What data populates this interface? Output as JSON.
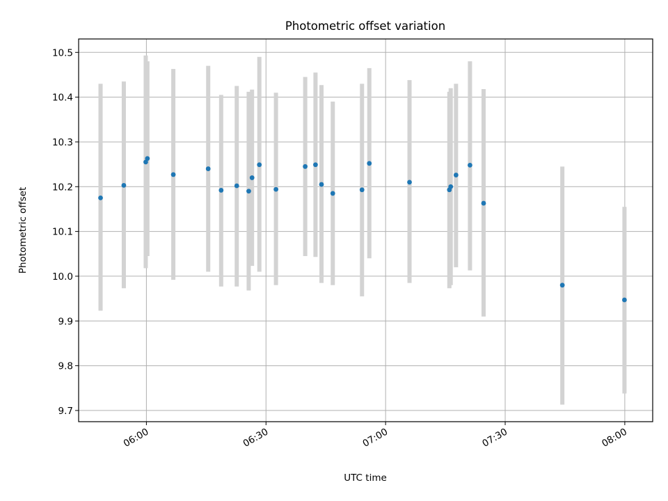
{
  "chart_data": {
    "type": "scatter",
    "title": "Photometric offset variation",
    "xlabel": "UTC time",
    "ylabel": "Photometric offset",
    "grid": true,
    "x_axis": {
      "scale": "time",
      "range": [
        "05:43",
        "08:07"
      ],
      "ticks": [
        "06:00",
        "06:30",
        "07:00",
        "07:30",
        "08:00"
      ]
    },
    "y_axis": {
      "range": [
        9.675,
        10.53
      ],
      "ticks": [
        9.7,
        9.8,
        9.9,
        10.0,
        10.1,
        10.2,
        10.3,
        10.4,
        10.5
      ],
      "tick_labels": [
        "9.7",
        "9.8",
        "9.9",
        "10.0",
        "10.1",
        "10.2",
        "10.3",
        "10.4",
        "10.5"
      ]
    },
    "colors": {
      "points": "#1f77b4",
      "errorbars": "#d3d3d3"
    },
    "series": [
      {
        "points": [
          {
            "x": "05:48:30",
            "y": 10.175,
            "lo": 9.923,
            "hi": 10.43
          },
          {
            "x": "05:54:20",
            "y": 10.203,
            "lo": 9.973,
            "hi": 10.435
          },
          {
            "x": "05:59:50",
            "y": 10.255,
            "lo": 10.018,
            "hi": 10.493
          },
          {
            "x": "06:00:15",
            "y": 10.263,
            "lo": 10.045,
            "hi": 10.48
          },
          {
            "x": "06:06:45",
            "y": 10.227,
            "lo": 9.992,
            "hi": 10.463
          },
          {
            "x": "06:15:30",
            "y": 10.24,
            "lo": 10.01,
            "hi": 10.47
          },
          {
            "x": "06:18:45",
            "y": 10.192,
            "lo": 9.977,
            "hi": 10.405
          },
          {
            "x": "06:22:40",
            "y": 10.202,
            "lo": 9.977,
            "hi": 10.425
          },
          {
            "x": "06:25:40",
            "y": 10.19,
            "lo": 9.968,
            "hi": 10.412
          },
          {
            "x": "06:26:30",
            "y": 10.22,
            "lo": 10.023,
            "hi": 10.417
          },
          {
            "x": "06:28:20",
            "y": 10.249,
            "lo": 10.01,
            "hi": 10.49
          },
          {
            "x": "06:32:30",
            "y": 10.194,
            "lo": 9.98,
            "hi": 10.41
          },
          {
            "x": "06:39:50",
            "y": 10.245,
            "lo": 10.045,
            "hi": 10.445
          },
          {
            "x": "06:42:25",
            "y": 10.249,
            "lo": 10.043,
            "hi": 10.455
          },
          {
            "x": "06:43:55",
            "y": 10.205,
            "lo": 9.985,
            "hi": 10.427
          },
          {
            "x": "06:46:45",
            "y": 10.185,
            "lo": 9.98,
            "hi": 10.39
          },
          {
            "x": "06:54:05",
            "y": 10.193,
            "lo": 9.955,
            "hi": 10.43
          },
          {
            "x": "06:55:55",
            "y": 10.252,
            "lo": 10.04,
            "hi": 10.465
          },
          {
            "x": "07:06:00",
            "y": 10.21,
            "lo": 9.985,
            "hi": 10.438
          },
          {
            "x": "07:16:00",
            "y": 10.193,
            "lo": 9.973,
            "hi": 10.412
          },
          {
            "x": "07:16:20",
            "y": 10.2,
            "lo": 9.98,
            "hi": 10.42
          },
          {
            "x": "07:17:40",
            "y": 10.226,
            "lo": 10.02,
            "hi": 10.43
          },
          {
            "x": "07:21:10",
            "y": 10.248,
            "lo": 10.013,
            "hi": 10.48
          },
          {
            "x": "07:24:35",
            "y": 10.163,
            "lo": 9.91,
            "hi": 10.418
          },
          {
            "x": "07:44:20",
            "y": 9.98,
            "lo": 9.713,
            "hi": 10.245
          },
          {
            "x": "07:59:55",
            "y": 9.947,
            "lo": 9.738,
            "hi": 10.155
          }
        ]
      }
    ]
  }
}
